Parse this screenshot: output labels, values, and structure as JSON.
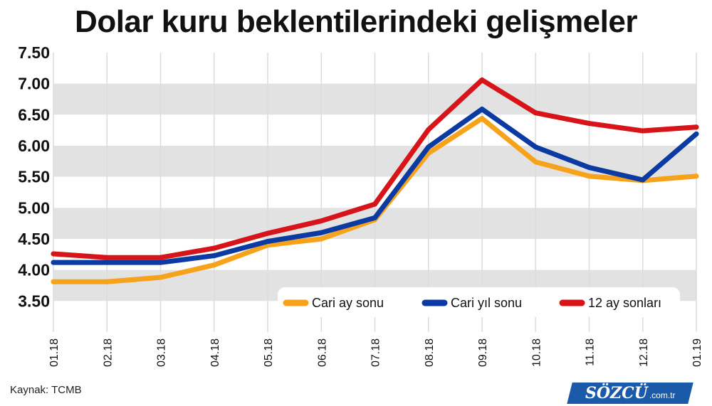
{
  "header": {
    "title": "Dolar kuru beklentilerindeki gelişmeler"
  },
  "footer": {
    "source": "Kaynak: TCMB",
    "brand_main": "SÖZCÜ",
    "brand_suffix": ".com.tr"
  },
  "chart_data": {
    "type": "line",
    "title": "Dolar kuru beklentilerindeki gelişmeler",
    "xlabel": "",
    "ylabel": "",
    "categories": [
      "01.18",
      "02.18",
      "03.18",
      "04.18",
      "05.18",
      "06.18",
      "07.18",
      "08.18",
      "09.18",
      "10.18",
      "11.18",
      "12.18",
      "01.19"
    ],
    "y_ticks": [
      "7.50",
      "7.00",
      "6.50",
      "6.00",
      "5.50",
      "5.00",
      "4.50",
      "4.00",
      "3.50"
    ],
    "ylim": [
      3.0,
      7.5
    ],
    "grid": "alternating horizontal bands",
    "legend_position": "bottom-right",
    "series": [
      {
        "name": "Cari ay sonu",
        "color": "#f7a21b",
        "values": [
          3.81,
          3.81,
          3.88,
          4.08,
          4.4,
          4.5,
          4.81,
          5.88,
          6.44,
          5.74,
          5.51,
          5.44,
          5.51
        ]
      },
      {
        "name": "Cari yıl sonu",
        "color": "#0b3aa3",
        "values": [
          4.12,
          4.12,
          4.12,
          4.23,
          4.46,
          4.6,
          4.84,
          5.98,
          6.59,
          5.98,
          5.65,
          5.45,
          6.19
        ]
      },
      {
        "name": "12 ay sonları",
        "color": "#d7141a",
        "values": [
          4.26,
          4.2,
          4.2,
          4.35,
          4.59,
          4.79,
          5.06,
          6.26,
          7.06,
          6.53,
          6.36,
          6.24,
          6.3
        ]
      }
    ]
  }
}
